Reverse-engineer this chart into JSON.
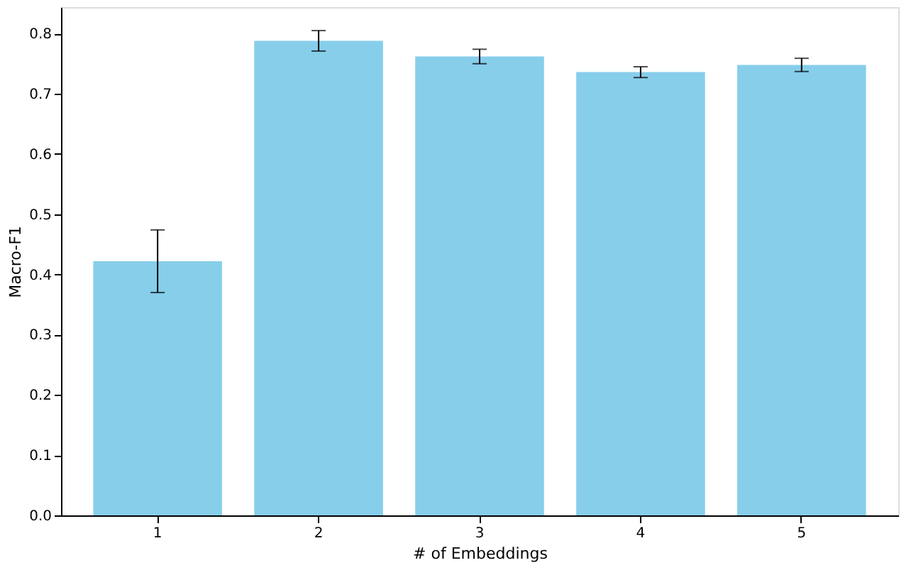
{
  "chart_data": {
    "type": "bar",
    "xlabel": "# of Embeddings",
    "ylabel": "Macro-F1",
    "categories": [
      "1",
      "2",
      "3",
      "4",
      "5"
    ],
    "values": [
      0.422,
      0.788,
      0.762,
      0.736,
      0.748
    ],
    "errors": [
      0.052,
      0.017,
      0.012,
      0.009,
      0.011
    ],
    "color": "#87ceeb",
    "ylim": [
      0,
      0.844
    ],
    "yticks": [
      {
        "value": 0,
        "label": "0.0"
      },
      0.1,
      0.2,
      0.3,
      0.4,
      0.5,
      0.6,
      0.7,
      0.8
    ],
    "grid": false
  }
}
